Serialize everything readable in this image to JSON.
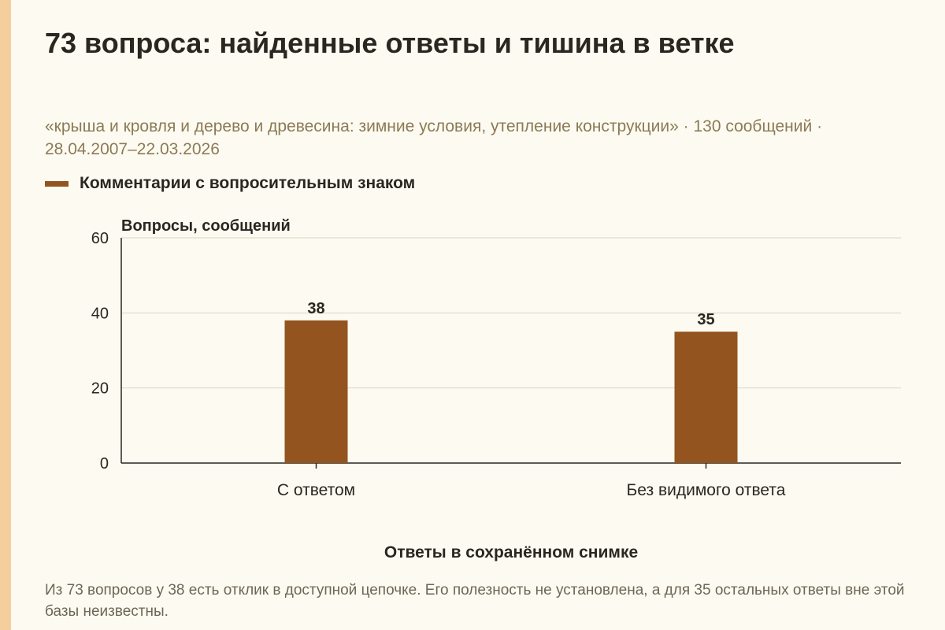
{
  "title": "73 вопроса: найденные ответы и тишина в ветке",
  "subtitle": "«крыша и кровля и дерево и древесина: зимние условия, утепление конструкции» · 130 сообщений · 28.04.2007–22.03.2026",
  "note": "Из 73 вопросов у 38 есть отклик в доступной цепочке. Его полезность не установлена, а для 35 остальных ответы вне этой базы неизвестны.",
  "colors": {
    "bar": "#93541f",
    "accent_strip": "#f4cf9c",
    "background": "#fdfbf1",
    "grid": "#d9d3c4",
    "axis": "#2a2620"
  },
  "chart_data": {
    "type": "bar",
    "categories": [
      "С ответом",
      "Без видимого ответа"
    ],
    "series": [
      {
        "name": "Комментарии с вопросительным знаком",
        "values": [
          38,
          35
        ]
      }
    ],
    "ylabel": "Вопросы, сообщений",
    "xlabel": "Ответы в сохранённом снимке",
    "ylim": [
      0,
      60
    ],
    "yticks": [
      0,
      20,
      40,
      60
    ],
    "data_labels": [
      "38",
      "35"
    ],
    "grid": true,
    "legend_position": "top-left"
  }
}
